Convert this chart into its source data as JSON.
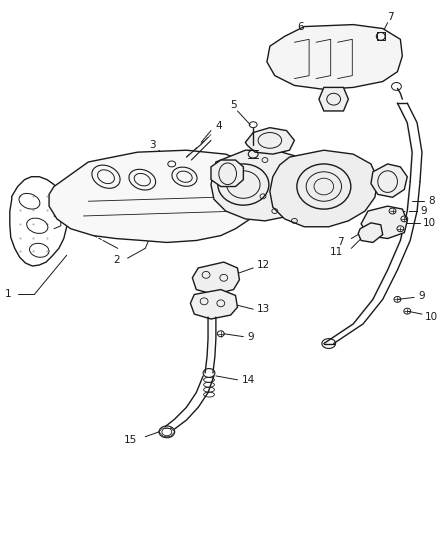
{
  "background_color": "#ffffff",
  "line_color": "#1a1a1a",
  "label_color": "#1a1a1a",
  "fig_width": 4.38,
  "fig_height": 5.33,
  "dpi": 100
}
